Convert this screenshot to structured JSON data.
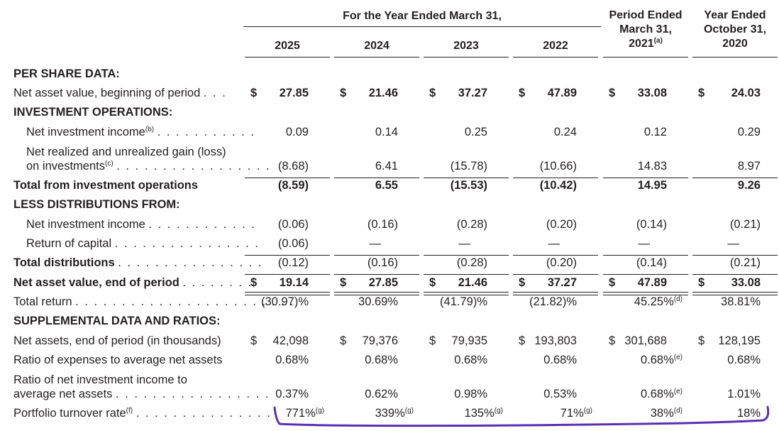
{
  "header": {
    "group_title": "For the Year Ended March 31,",
    "period_ended": [
      "Period Ended",
      "March 31,",
      "2021"
    ],
    "period_ended_sup": "(a)",
    "year_ended": [
      "Year Ended",
      "October 31,",
      "2020"
    ],
    "years": [
      "2025",
      "2024",
      "2023",
      "2022"
    ]
  },
  "labels": {
    "per_share": "PER SHARE DATA:",
    "nav_begin": "Net asset value, beginning of period",
    "inv_ops": "INVESTMENT OPERATIONS:",
    "nii": "Net investment income",
    "nii_sup": "(b)",
    "gain_1": "Net realized and unrealized gain (loss)",
    "gain_2": "on investments",
    "gain_sup": "(c)",
    "total_ops": "Total from investment operations",
    "less_dist": "LESS DISTRIBUTIONS FROM:",
    "dist_nii": "Net investment income",
    "roc": "Return of capital",
    "total_dist": "Total distributions",
    "nav_end": "Net asset value, end of period",
    "total_return": "Total return",
    "supp": "SUPPLEMENTAL DATA AND RATIOS:",
    "net_assets": "Net assets, end of period (in thousands)",
    "exp_ratio": "Ratio of expenses to average net assets",
    "nii_ratio_1": "Ratio of net investment income to",
    "nii_ratio_2": "average net assets",
    "turnover": "Portfolio turnover rate",
    "turnover_sup": "(f)",
    "dots_short": ". . .",
    "dots_nii": ". . . . . . . . . . .",
    "dots_gain": ". . . . . . . . . . . . . . . . .",
    "dots_dist": ". . . . . . . . . . . .",
    "dots_roc": ". . . . . . . . . . . . . . . .",
    "dots_total": ". . . . . . . . . . . . . . . .",
    "dots_nav": ". . . . . . . .",
    "dots_tr": ". . . . . . . . . . . . . . . . . . . . . . . .",
    "dots_avg": ". . . . . . . . . . . . . . . . .",
    "dots_turn": ". . . . . . . . . . . . . . ."
  },
  "currency_symbol": "$",
  "dash": "—",
  "columns": [
    {
      "nav_begin": "27.85",
      "nii": "0.09",
      "gain": "(8.68)",
      "total_ops": "(8.59)",
      "dist_nii": "(0.06)",
      "roc": "(0.06)",
      "total_dist": "(0.12)",
      "nav_end": "19.14",
      "total_return": "(30.97)%",
      "net_assets": "42,098",
      "exp_ratio": "0.68%",
      "nii_ratio": "0.37%",
      "turnover": "771%",
      "turnover_sup": "(g)"
    },
    {
      "nav_begin": "21.46",
      "nii": "0.14",
      "gain": "6.41",
      "total_ops": "6.55",
      "dist_nii": "(0.16)",
      "roc": "—",
      "total_dist": "(0.16)",
      "nav_end": "27.85",
      "total_return": "30.69%",
      "net_assets": "79,376",
      "exp_ratio": "0.68%",
      "nii_ratio": "0.62%",
      "turnover": "339%",
      "turnover_sup": "(g)"
    },
    {
      "nav_begin": "37.27",
      "nii": "0.25",
      "gain": "(15.78)",
      "total_ops": "(15.53)",
      "dist_nii": "(0.28)",
      "roc": "—",
      "total_dist": "(0.28)",
      "nav_end": "21.46",
      "total_return": "(41.79)%",
      "net_assets": "79,935",
      "exp_ratio": "0.68%",
      "nii_ratio": "0.98%",
      "turnover": "135%",
      "turnover_sup": "(g)"
    },
    {
      "nav_begin": "47.89",
      "nii": "0.24",
      "gain": "(10.66)",
      "total_ops": "(10.42)",
      "dist_nii": "(0.20)",
      "roc": "—",
      "total_dist": "(0.20)",
      "nav_end": "37.27",
      "total_return": "(21.82)%",
      "net_assets": "193,803",
      "exp_ratio": "0.68%",
      "nii_ratio": "0.53%",
      "turnover": "71%",
      "turnover_sup": "(g)"
    },
    {
      "nav_begin": "33.08",
      "nii": "0.12",
      "gain": "14.83",
      "total_ops": "14.95",
      "dist_nii": "(0.14)",
      "roc": "—",
      "total_dist": "(0.14)",
      "nav_end": "47.89",
      "total_return": "45.25%",
      "total_return_sup": "(d)",
      "net_assets": "301,688",
      "exp_ratio": "0.68%",
      "exp_ratio_sup": "(e)",
      "nii_ratio": "0.68%",
      "nii_ratio_sup": "(e)",
      "turnover": "38%",
      "turnover_sup": "(d)"
    },
    {
      "nav_begin": "24.03",
      "nii": "0.29",
      "gain": "8.97",
      "total_ops": "9.26",
      "dist_nii": "(0.21)",
      "roc": "—",
      "total_dist": "(0.21)",
      "nav_end": "33.08",
      "total_return": "38.81%",
      "net_assets": "128,195",
      "exp_ratio": "0.68%",
      "nii_ratio": "1.01%",
      "turnover": "18%"
    }
  ],
  "annotation": {
    "color": "#5b2fb0",
    "shape": "hand-drawn-underline-under-turnover-row"
  }
}
